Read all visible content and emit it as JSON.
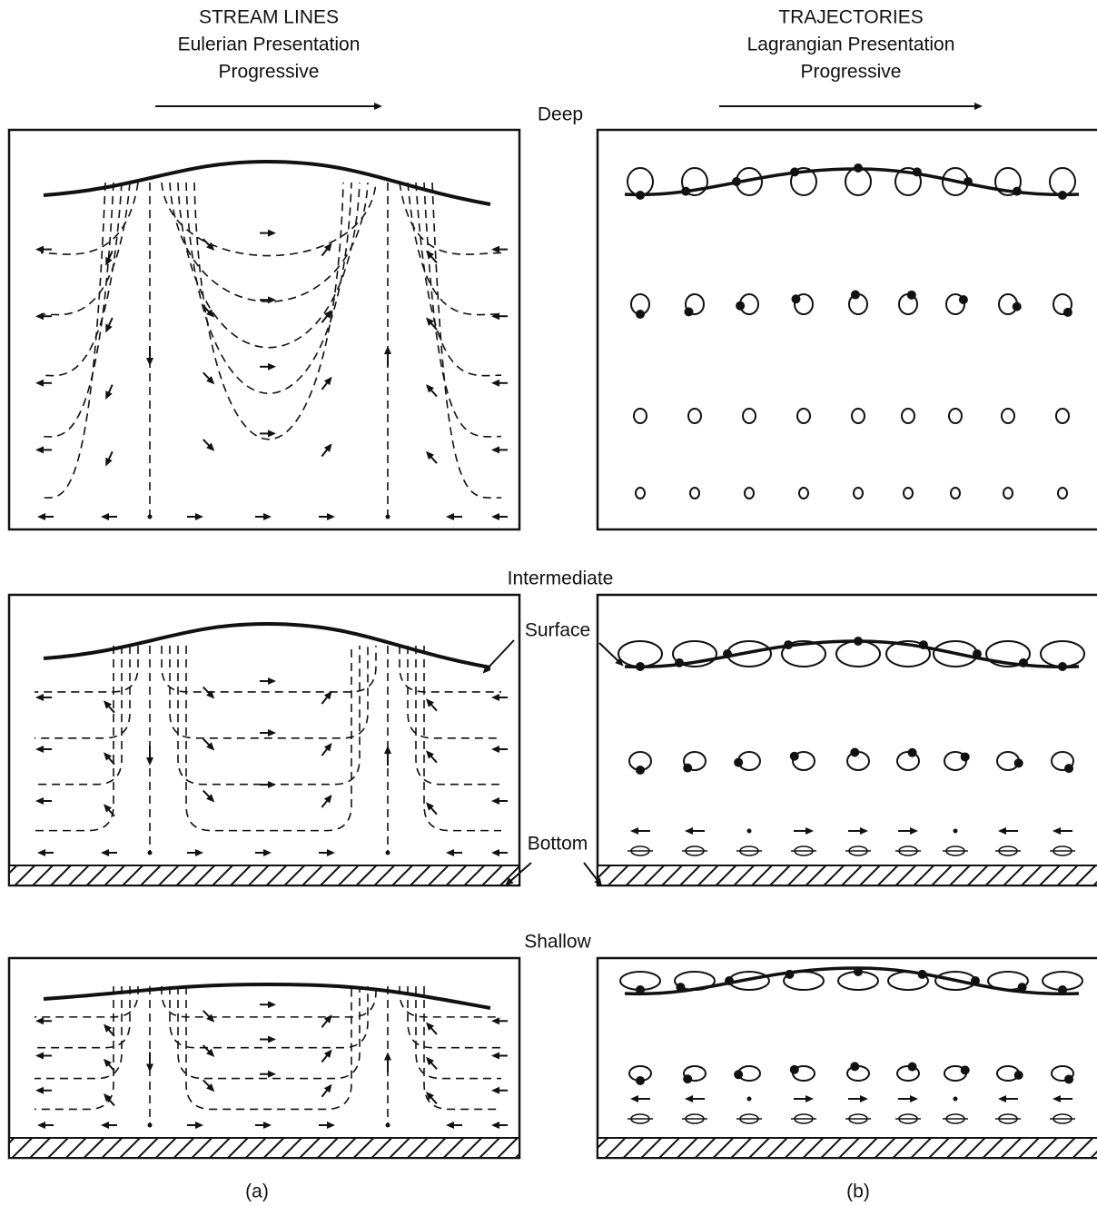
{
  "left_header": {
    "title": "STREAM LINES",
    "subtitle": "Eulerian Presentation",
    "mode": "Progressive"
  },
  "right_header": {
    "title": "TRAJECTORIES",
    "subtitle": "Lagrangian Presentation",
    "mode": "Progressive"
  },
  "depth_labels": {
    "deep": "Deep",
    "intermediate": "Intermediate",
    "shallow": "Shallow"
  },
  "boundary_labels": {
    "surface": "Surface",
    "bottom": "Bottom"
  },
  "panel_labels": {
    "left": "(a)",
    "right": "(b)"
  }
}
